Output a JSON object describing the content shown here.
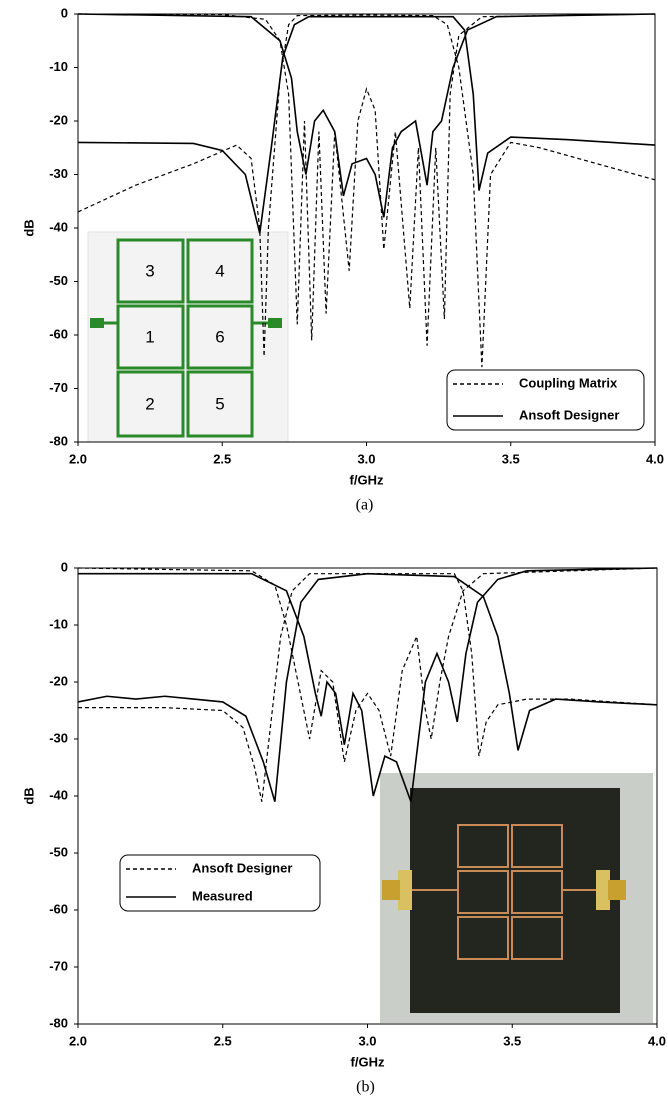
{
  "chart_data": [
    {
      "type": "line",
      "caption": "(a)",
      "ylabel": "dB",
      "xlabel": "f/GHz",
      "xlim": [
        2,
        4
      ],
      "ylim": [
        -80,
        0
      ],
      "xticks": [
        {
          "value": 2,
          "label": "2.0"
        },
        2.5,
        {
          "value": 3,
          "label": "3.0"
        },
        3.5,
        {
          "value": 4,
          "label": "4.0"
        }
      ],
      "yticks": [
        0,
        -10,
        -20,
        -30,
        -40,
        -50,
        -60,
        -70,
        -80
      ],
      "grid": false,
      "legend": "lower right",
      "inset_labels": [
        "3",
        "4",
        "1",
        "6",
        "2",
        "5"
      ],
      "series": [
        {
          "name": "Coupling Matrix",
          "color": "#000000",
          "line_style": "dashed",
          "curves": [
            {
              "x": [
                2.0,
                2.2,
                2.4,
                2.55,
                2.6,
                2.63,
                2.645,
                2.66,
                2.7,
                2.73,
                2.76,
                3.0,
                3.23,
                3.28,
                3.32,
                3.37,
                3.4,
                3.43,
                3.5,
                3.6,
                3.8,
                4.0
              ],
              "values": [
                -37,
                -32,
                -28,
                -24.5,
                -27,
                -40,
                -64,
                -40,
                -12,
                -2,
                -0.3,
                -0.2,
                -0.3,
                -2,
                -10,
                -30,
                -66,
                -30,
                -24,
                -25,
                -28,
                -31
              ]
            },
            {
              "x": [
                2.0,
                2.5,
                2.65,
                2.7,
                2.73,
                2.76,
                2.785,
                2.81,
                2.835,
                2.86,
                2.89,
                2.94,
                2.97,
                3.0,
                3.03,
                3.06,
                3.1,
                3.15,
                3.18,
                3.21,
                3.24,
                3.27,
                3.29,
                3.32,
                3.4,
                4.0
              ],
              "values": [
                0,
                -0.1,
                -1,
                -5,
                -15,
                -58,
                -20,
                -61,
                -22,
                -56,
                -22,
                -48,
                -20,
                -14,
                -18,
                -44,
                -22,
                -55,
                -25,
                -62,
                -25,
                -57,
                -15,
                -4,
                -0.5,
                0
              ]
            }
          ]
        },
        {
          "name": "Ansoft Designer",
          "color": "#000000",
          "line_style": "solid",
          "curves": [
            {
              "x": [
                2.0,
                2.4,
                2.5,
                2.58,
                2.63,
                2.67,
                2.71,
                2.75,
                2.8,
                3.3,
                3.34,
                3.37,
                3.39,
                3.42,
                3.5,
                3.7,
                4.0
              ],
              "values": [
                -24,
                -24.2,
                -25.5,
                -30,
                -41,
                -25,
                -8,
                -2,
                -0.5,
                -0.5,
                -3,
                -15,
                -33,
                -26,
                -23,
                -23.5,
                -24.5
              ]
            },
            {
              "x": [
                2.0,
                2.6,
                2.7,
                2.74,
                2.76,
                2.79,
                2.82,
                2.85,
                2.89,
                2.92,
                2.95,
                3.0,
                3.03,
                3.06,
                3.09,
                3.12,
                3.17,
                3.21,
                3.23,
                3.26,
                3.3,
                3.35,
                3.45,
                4.0
              ],
              "values": [
                0,
                -0.5,
                -5,
                -12,
                -22,
                -30,
                -20,
                -18,
                -22,
                -34,
                -28,
                -27,
                -30,
                -38,
                -25,
                -22,
                -20,
                -32,
                -22,
                -20,
                -10,
                -3,
                -0.5,
                0
              ]
            }
          ]
        }
      ]
    },
    {
      "type": "line",
      "caption": "(b)",
      "ylabel": "dB",
      "xlabel": "f/GHz",
      "xlim": [
        2,
        4
      ],
      "ylim": [
        -80,
        0
      ],
      "xticks": [
        {
          "value": 2,
          "label": "2.0"
        },
        2.5,
        {
          "value": 3,
          "label": "3.0"
        },
        3.5,
        {
          "value": 4,
          "label": "4.0"
        }
      ],
      "yticks": [
        0,
        -10,
        -20,
        -30,
        -40,
        -50,
        -60,
        -70,
        -80
      ],
      "grid": false,
      "legend": "center left",
      "series": [
        {
          "name": "Ansoft Designer",
          "color": "#000000",
          "line_style": "dashed",
          "curves": [
            {
              "x": [
                2.0,
                2.3,
                2.5,
                2.57,
                2.61,
                2.635,
                2.66,
                2.7,
                2.74,
                2.8,
                3.3,
                3.33,
                3.36,
                3.385,
                3.41,
                3.45,
                3.55,
                3.7,
                4.0
              ],
              "values": [
                -24.5,
                -24.5,
                -25,
                -28,
                -35,
                -41,
                -30,
                -12,
                -4,
                -1,
                -1,
                -4,
                -15,
                -33,
                -27,
                -24,
                -23,
                -23,
                -24
              ]
            },
            {
              "x": [
                2.0,
                2.6,
                2.68,
                2.72,
                2.76,
                2.8,
                2.84,
                2.88,
                2.92,
                2.96,
                3.0,
                3.04,
                3.08,
                3.12,
                3.17,
                3.2,
                3.22,
                3.25,
                3.28,
                3.33,
                3.4,
                4.0
              ],
              "values": [
                0,
                -0.5,
                -3,
                -10,
                -20,
                -30,
                -18,
                -20,
                -34,
                -25,
                -22,
                -25,
                -33,
                -18,
                -12,
                -25,
                -30,
                -20,
                -12,
                -4,
                -1,
                0
              ]
            }
          ]
        },
        {
          "name": "Measured",
          "color": "#000000",
          "line_style": "solid",
          "curves": [
            {
              "x": [
                2.0,
                2.1,
                2.2,
                2.3,
                2.4,
                2.5,
                2.58,
                2.64,
                2.68,
                2.72,
                2.77,
                2.83,
                3.0,
                3.3,
                3.4,
                3.45,
                3.49,
                3.52,
                3.56,
                3.65,
                3.8,
                4.0
              ],
              "values": [
                -23.5,
                -22.5,
                -23,
                -22.5,
                -23,
                -23.5,
                -26,
                -34,
                -41,
                -20,
                -6,
                -2,
                -1,
                -1.5,
                -5,
                -12,
                -22,
                -32,
                -25,
                -23,
                -23.5,
                -24
              ]
            },
            {
              "x": [
                2.0,
                2.6,
                2.72,
                2.78,
                2.82,
                2.84,
                2.86,
                2.89,
                2.92,
                2.95,
                2.98,
                3.02,
                3.06,
                3.1,
                3.15,
                3.2,
                3.24,
                3.28,
                3.31,
                3.34,
                3.38,
                3.45,
                3.55,
                4.0
              ],
              "values": [
                -1,
                -1,
                -4,
                -12,
                -22,
                -26,
                -20,
                -22,
                -31,
                -22,
                -25,
                -40,
                -33,
                -34,
                -41,
                -20,
                -15,
                -20,
                -27,
                -15,
                -6,
                -2,
                -0.5,
                0
              ]
            }
          ]
        }
      ]
    }
  ]
}
